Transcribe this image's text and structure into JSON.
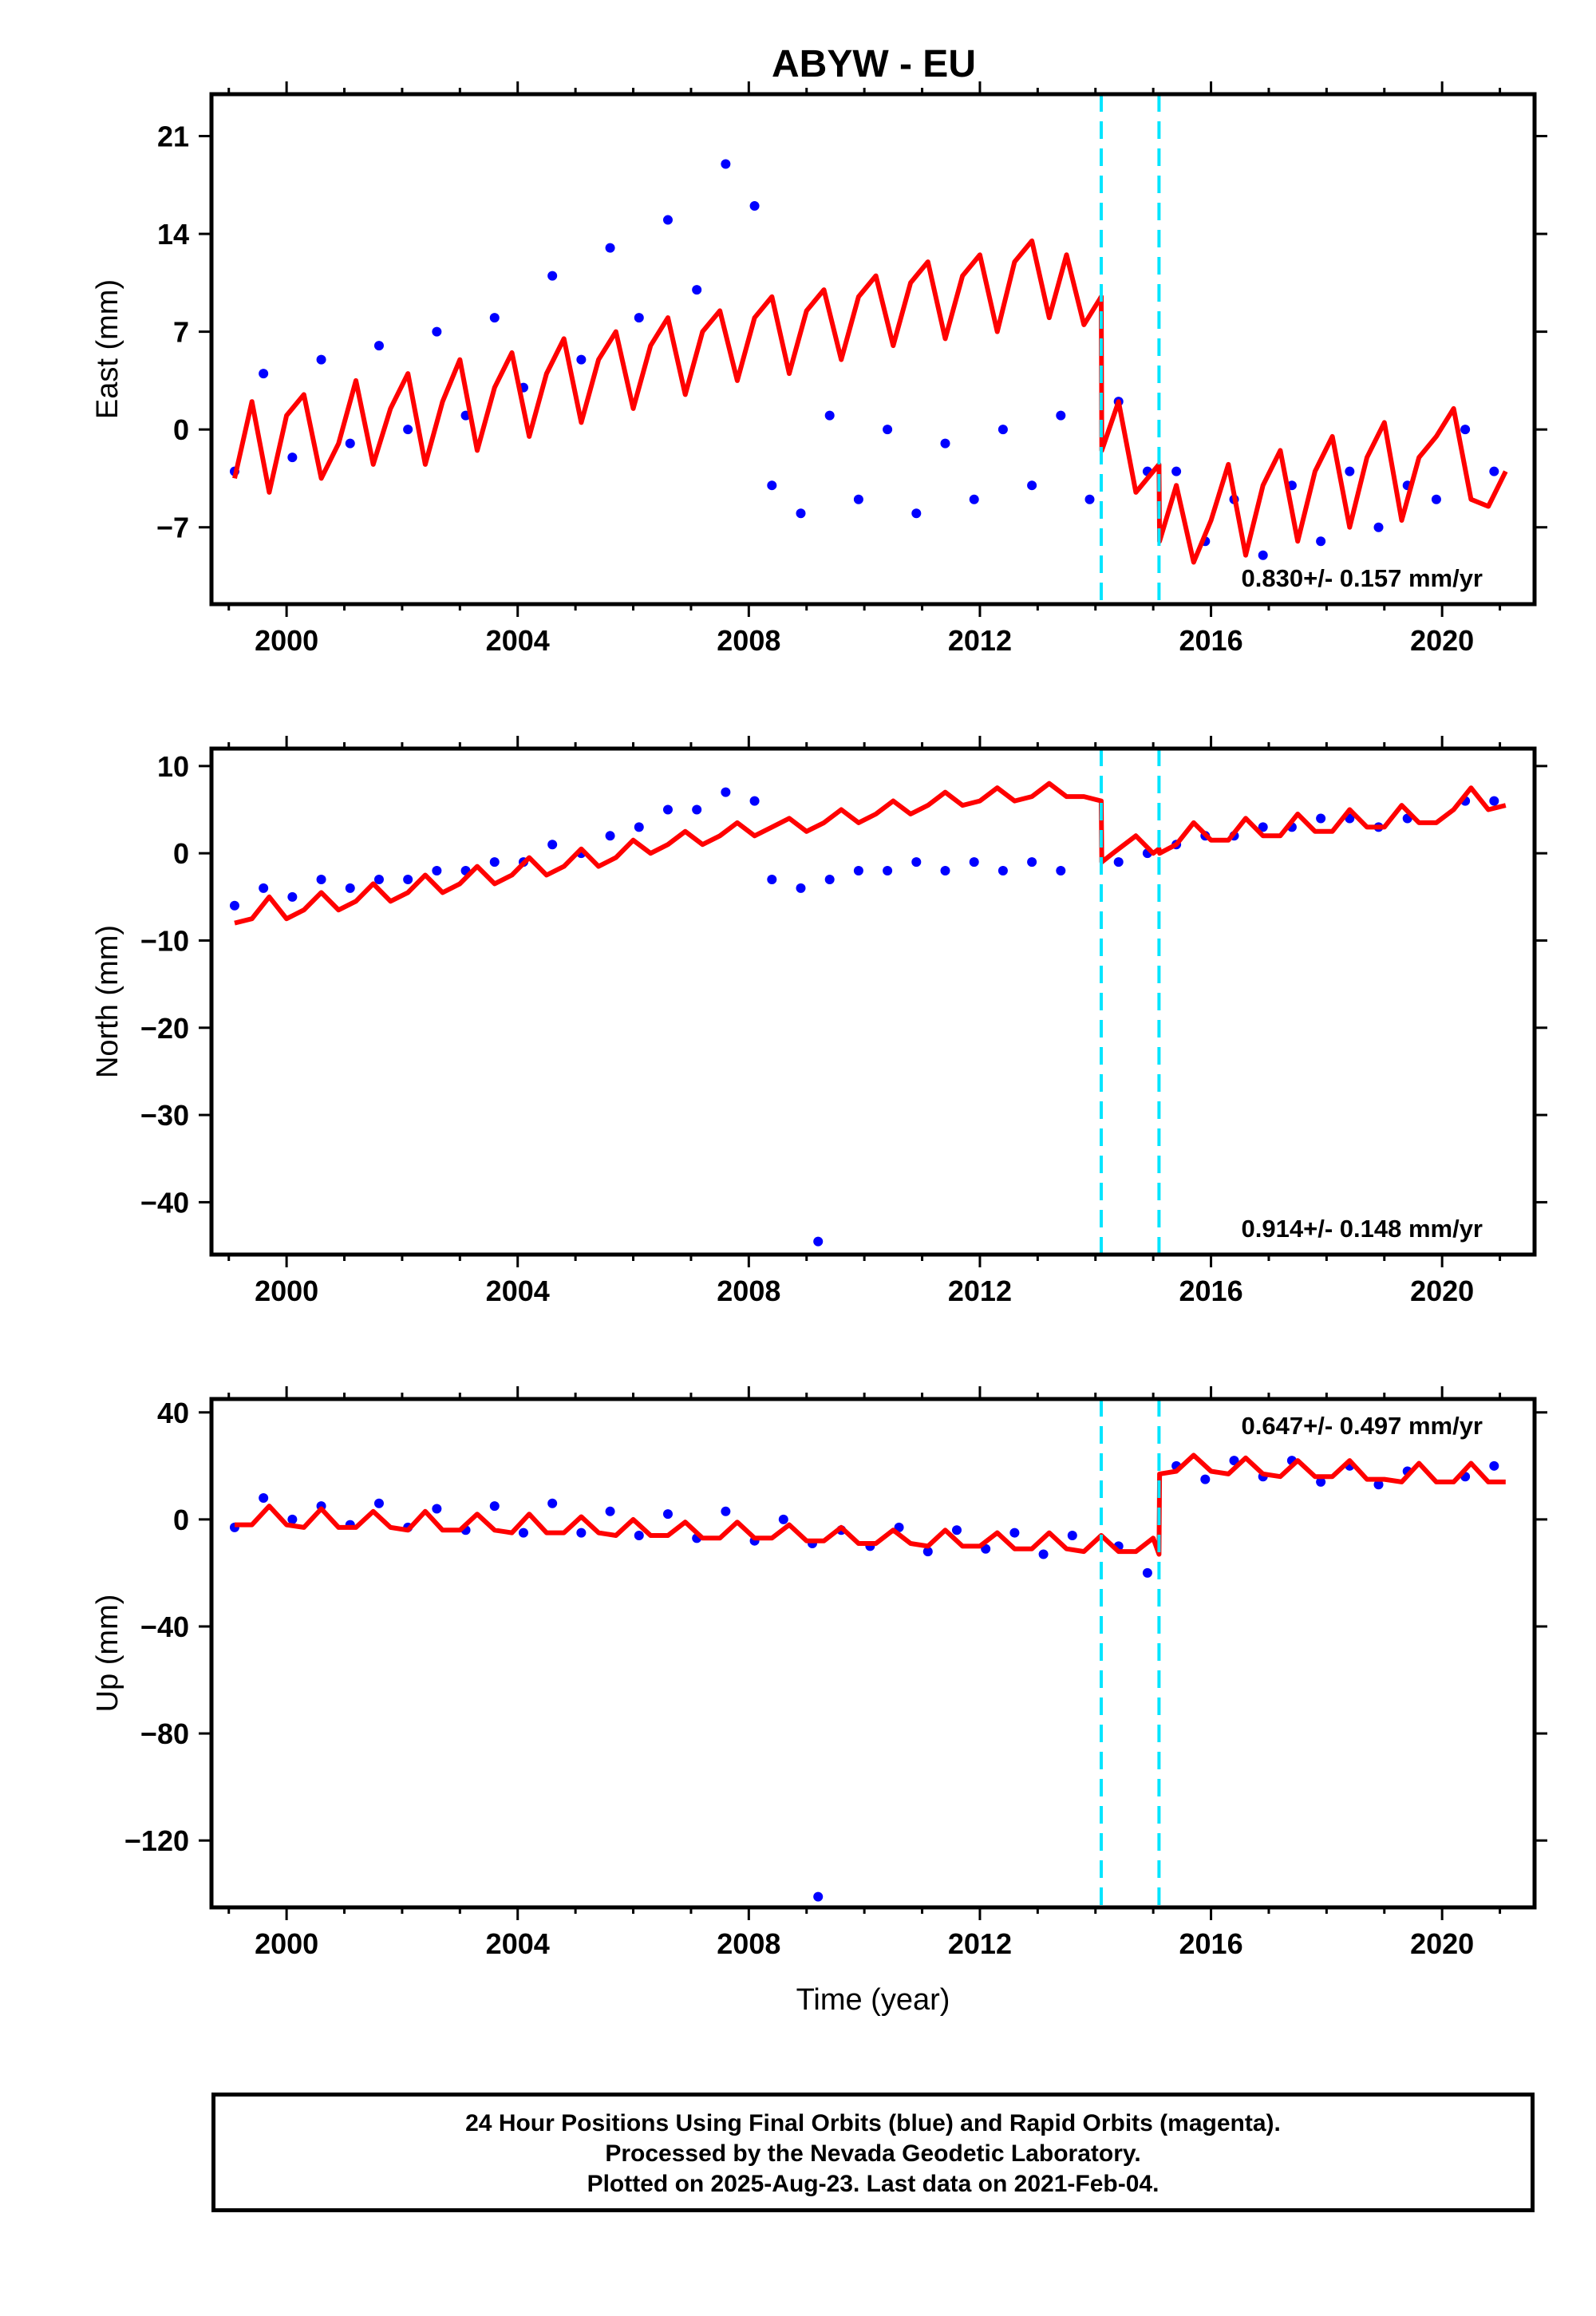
{
  "title": "ABYW - EU",
  "caption": [
    "24 Hour Positions Using Final Orbits (blue) and Rapid Orbits (magenta).",
    "Processed by the Nevada Geodetic Laboratory.",
    "Plotted on 2025-Aug-23. Last data on 2021-Feb-04."
  ],
  "colors": {
    "data": "#0000ff",
    "model": "#ff0000",
    "offset_lines": "#00e5ff",
    "frame": "#000000"
  },
  "chart_data": [
    {
      "type": "scatter",
      "panel": "east",
      "ylabel": "East (mm)",
      "xlabel": "",
      "xlim": [
        1998.7,
        2021.6
      ],
      "ylim": [
        -12.5,
        24
      ],
      "xticks": [
        2000,
        2004,
        2008,
        2012,
        2016,
        2020
      ],
      "yticks": [
        -7,
        0,
        7,
        14,
        21
      ],
      "rate_label": "0.830+/- 0.157 mm/yr",
      "offset_epochs": [
        2014.1,
        2015.1
      ],
      "series": [
        {
          "role": "observed",
          "x": [
            1999.1,
            1999.6,
            2000.1,
            2000.6,
            2001.1,
            2001.6,
            2002.1,
            2002.6,
            2003.1,
            2003.6,
            2004.1,
            2004.6,
            2005.1,
            2005.6,
            2006.1,
            2006.6,
            2007.1,
            2007.6,
            2008.1,
            2008.4,
            2008.9,
            2009.4,
            2009.9,
            2010.4,
            2010.9,
            2011.4,
            2011.9,
            2012.4,
            2012.9,
            2013.4,
            2013.9,
            2014.4,
            2014.9,
            2015.4,
            2015.9,
            2016.4,
            2016.9,
            2017.4,
            2017.9,
            2018.4,
            2018.9,
            2019.4,
            2019.9,
            2020.4,
            2020.9
          ],
          "y": [
            -3,
            4,
            -2,
            5,
            -1,
            6,
            0,
            7,
            1,
            8,
            3,
            11,
            5,
            13,
            8,
            15,
            10,
            19,
            16,
            -4,
            -6,
            1,
            -5,
            0,
            -6,
            -1,
            -5,
            0,
            -4,
            1,
            -5,
            2,
            -3,
            -3,
            -8,
            -5,
            -9,
            -4,
            -8,
            -3,
            -7,
            -4,
            -5,
            0,
            -3
          ]
        },
        {
          "role": "model",
          "x": [
            1999.1,
            1999.4,
            1999.7,
            2000.0,
            2000.3,
            2000.6,
            2000.9,
            2001.2,
            2001.5,
            2001.8,
            2002.1,
            2002.4,
            2002.7,
            2003.0,
            2003.3,
            2003.6,
            2003.9,
            2004.2,
            2004.5,
            2004.8,
            2005.1,
            2005.4,
            2005.7,
            2006.0,
            2006.3,
            2006.6,
            2006.9,
            2007.2,
            2007.5,
            2007.8,
            2008.1,
            2008.4,
            2008.7,
            2009.0,
            2009.3,
            2009.6,
            2009.9,
            2010.2,
            2010.5,
            2010.8,
            2011.1,
            2011.4,
            2011.7,
            2012.0,
            2012.3,
            2012.6,
            2012.9,
            2013.2,
            2013.5,
            2013.8,
            2014.1,
            2014.11,
            2014.4,
            2014.7,
            2015.0,
            2015.1,
            2015.11,
            2015.4,
            2015.7,
            2016.0,
            2016.3,
            2016.6,
            2016.9,
            2017.2,
            2017.5,
            2017.8,
            2018.1,
            2018.4,
            2018.7,
            2019.0,
            2019.3,
            2019.6,
            2019.9,
            2020.2,
            2020.5,
            2020.8,
            2021.1
          ],
          "y": [
            -3.5,
            2.0,
            -4.5,
            1.0,
            2.5,
            -3.5,
            -1.0,
            3.5,
            -2.5,
            1.5,
            4.0,
            -2.5,
            2.0,
            5.0,
            -1.5,
            3.0,
            5.5,
            -0.5,
            4.0,
            6.5,
            0.5,
            5.0,
            7.0,
            1.5,
            6.0,
            8.0,
            2.5,
            7.0,
            8.5,
            3.5,
            8.0,
            9.5,
            4.0,
            8.5,
            10.0,
            5.0,
            9.5,
            11.0,
            6.0,
            10.5,
            12.0,
            6.5,
            11.0,
            12.5,
            7.0,
            12.0,
            13.5,
            8.0,
            12.5,
            7.5,
            9.5,
            -1.5,
            2.0,
            -4.5,
            -3.0,
            -2.5,
            -8.0,
            -4.0,
            -9.5,
            -6.5,
            -2.5,
            -9.0,
            -4.0,
            -1.5,
            -8.0,
            -3.0,
            -0.5,
            -7.0,
            -2.0,
            0.5,
            -6.5,
            -2.0,
            -0.5,
            1.5,
            -5.0,
            -5.5,
            -3.0
          ]
        }
      ]
    },
    {
      "type": "scatter",
      "panel": "north",
      "ylabel": "North (mm)",
      "xlabel": "",
      "xlim": [
        1998.7,
        2021.6
      ],
      "ylim": [
        -46,
        12
      ],
      "xticks": [
        2000,
        2004,
        2008,
        2012,
        2016,
        2020
      ],
      "yticks": [
        -40,
        -30,
        -20,
        -10,
        0,
        10
      ],
      "rate_label": "0.914+/- 0.148 mm/yr",
      "offset_epochs": [
        2014.1,
        2015.1
      ],
      "series": [
        {
          "role": "observed",
          "x": [
            1999.1,
            1999.6,
            2000.1,
            2000.6,
            2001.1,
            2001.6,
            2002.1,
            2002.6,
            2003.1,
            2003.6,
            2004.1,
            2004.6,
            2005.1,
            2005.6,
            2006.1,
            2006.6,
            2007.1,
            2007.6,
            2008.1,
            2008.4,
            2008.9,
            2009.2,
            2009.4,
            2009.9,
            2010.4,
            2010.9,
            2011.4,
            2011.9,
            2012.4,
            2012.9,
            2013.4,
            2014.4,
            2014.9,
            2015.4,
            2015.9,
            2016.4,
            2016.9,
            2017.4,
            2017.9,
            2018.4,
            2018.9,
            2019.4,
            2020.4,
            2020.9
          ],
          "y": [
            -6,
            -4,
            -5,
            -3,
            -4,
            -3,
            -3,
            -2,
            -2,
            -1,
            -1,
            1,
            0,
            2,
            3,
            5,
            5,
            7,
            6,
            -3,
            -4,
            -44.5,
            -3,
            -2,
            -2,
            -1,
            -2,
            -1,
            -2,
            -1,
            -2,
            -1,
            0,
            1,
            2,
            2,
            3,
            3,
            4,
            4,
            3,
            4,
            6,
            6
          ]
        },
        {
          "role": "model",
          "x": [
            1999.1,
            1999.4,
            1999.7,
            2000.0,
            2000.3,
            2000.6,
            2000.9,
            2001.2,
            2001.5,
            2001.8,
            2002.1,
            2002.4,
            2002.7,
            2003.0,
            2003.3,
            2003.6,
            2003.9,
            2004.2,
            2004.5,
            2004.8,
            2005.1,
            2005.4,
            2005.7,
            2006.0,
            2006.3,
            2006.6,
            2006.9,
            2007.2,
            2007.5,
            2007.8,
            2008.1,
            2008.4,
            2008.7,
            2009.0,
            2009.3,
            2009.6,
            2009.9,
            2010.2,
            2010.5,
            2010.8,
            2011.1,
            2011.4,
            2011.7,
            2012.0,
            2012.3,
            2012.6,
            2012.9,
            2013.2,
            2013.5,
            2013.8,
            2014.1,
            2014.11,
            2014.4,
            2014.7,
            2015.0,
            2015.1,
            2015.11,
            2015.4,
            2015.7,
            2016.0,
            2016.3,
            2016.6,
            2016.9,
            2017.2,
            2017.5,
            2017.8,
            2018.1,
            2018.4,
            2018.7,
            2019.0,
            2019.3,
            2019.6,
            2019.9,
            2020.2,
            2020.5,
            2020.8,
            2021.1
          ],
          "y": [
            -8,
            -7.5,
            -5,
            -7.5,
            -6.5,
            -4.5,
            -6.5,
            -5.5,
            -3.5,
            -5.5,
            -4.5,
            -2.5,
            -4.5,
            -3.5,
            -1.5,
            -3.5,
            -2.5,
            -0.5,
            -2.5,
            -1.5,
            0.5,
            -1.5,
            -0.5,
            1.5,
            0.0,
            1.0,
            2.5,
            1.0,
            2.0,
            3.5,
            2.0,
            3.0,
            4.0,
            2.5,
            3.5,
            5.0,
            3.5,
            4.5,
            6.0,
            4.5,
            5.5,
            7.0,
            5.5,
            6.0,
            7.5,
            6.0,
            6.5,
            8.0,
            6.5,
            6.5,
            6.0,
            -1.0,
            0.5,
            2.0,
            0.0,
            0.5,
            0.0,
            1.0,
            3.5,
            1.5,
            1.5,
            4.0,
            2.0,
            2.0,
            4.5,
            2.5,
            2.5,
            5.0,
            3.0,
            3.0,
            5.5,
            3.5,
            3.5,
            5.0,
            7.5,
            5.0,
            5.5
          ]
        }
      ]
    },
    {
      "type": "scatter",
      "panel": "up",
      "ylabel": "Up (mm)",
      "xlabel": "Time (year)",
      "xlim": [
        1998.7,
        2021.6
      ],
      "ylim": [
        -145,
        45
      ],
      "xticks": [
        2000,
        2004,
        2008,
        2012,
        2016,
        2020
      ],
      "yticks": [
        -120,
        -80,
        -40,
        0,
        40
      ],
      "rate_label": "0.647+/- 0.497 mm/yr",
      "offset_epochs": [
        2014.1,
        2015.1
      ],
      "series": [
        {
          "role": "observed",
          "x": [
            1999.1,
            1999.6,
            2000.1,
            2000.6,
            2001.1,
            2001.6,
            2002.1,
            2002.6,
            2003.1,
            2003.6,
            2004.1,
            2004.6,
            2005.1,
            2005.6,
            2006.1,
            2006.6,
            2007.1,
            2007.6,
            2008.1,
            2008.6,
            2009.1,
            2009.2,
            2009.6,
            2010.1,
            2010.6,
            2011.1,
            2011.6,
            2012.1,
            2012.6,
            2013.1,
            2013.6,
            2014.4,
            2014.9,
            2015.4,
            2015.9,
            2016.4,
            2016.9,
            2017.4,
            2017.9,
            2018.4,
            2018.9,
            2019.4,
            2020.4,
            2020.9
          ],
          "y": [
            -3,
            8,
            0,
            5,
            -2,
            6,
            -3,
            4,
            -4,
            5,
            -5,
            6,
            -5,
            3,
            -6,
            2,
            -7,
            3,
            -8,
            0,
            -9,
            -141,
            -4,
            -10,
            -3,
            -12,
            -4,
            -11,
            -5,
            -13,
            -6,
            -10,
            -20,
            20,
            15,
            22,
            16,
            22,
            14,
            20,
            13,
            18,
            16,
            20
          ]
        },
        {
          "role": "model",
          "x": [
            1999.1,
            1999.4,
            1999.7,
            2000.0,
            2000.3,
            2000.6,
            2000.9,
            2001.2,
            2001.5,
            2001.8,
            2002.1,
            2002.4,
            2002.7,
            2003.0,
            2003.3,
            2003.6,
            2003.9,
            2004.2,
            2004.5,
            2004.8,
            2005.1,
            2005.4,
            2005.7,
            2006.0,
            2006.3,
            2006.6,
            2006.9,
            2007.2,
            2007.5,
            2007.8,
            2008.1,
            2008.4,
            2008.7,
            2009.0,
            2009.3,
            2009.6,
            2009.9,
            2010.2,
            2010.5,
            2010.8,
            2011.1,
            2011.4,
            2011.7,
            2012.0,
            2012.3,
            2012.6,
            2012.9,
            2013.2,
            2013.5,
            2013.8,
            2014.1,
            2014.4,
            2014.7,
            2015.0,
            2015.1,
            2015.11,
            2015.4,
            2015.7,
            2016.0,
            2016.3,
            2016.6,
            2016.9,
            2017.2,
            2017.5,
            2017.8,
            2018.1,
            2018.4,
            2018.7,
            2019.0,
            2019.3,
            2019.6,
            2019.9,
            2020.2,
            2020.5,
            2020.8,
            2021.1
          ],
          "y": [
            -2,
            -2,
            5,
            -2,
            -3,
            4,
            -3,
            -3,
            3,
            -3,
            -4,
            3,
            -4,
            -4,
            2,
            -4,
            -5,
            2,
            -5,
            -5,
            1,
            -5,
            -6,
            0,
            -6,
            -6,
            -1,
            -7,
            -7,
            -1,
            -7,
            -7,
            -2,
            -8,
            -8,
            -3,
            -9,
            -9,
            -4,
            -9,
            -10,
            -4,
            -10,
            -10,
            -5,
            -11,
            -11,
            -5,
            -11,
            -12,
            -6,
            -12,
            -12,
            -7,
            -13,
            17,
            18,
            24,
            18,
            17,
            23,
            17,
            16,
            22,
            16,
            16,
            22,
            15,
            15,
            14,
            21,
            14,
            14,
            21,
            14,
            14
          ]
        }
      ]
    }
  ]
}
